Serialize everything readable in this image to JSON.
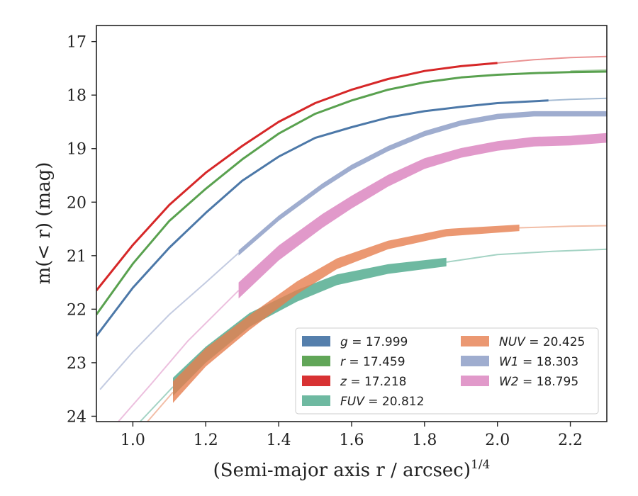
{
  "chart_data": {
    "type": "line",
    "xlabel": "(Semi-major axis r / arcsec)",
    "xlabel_sup": "1/4",
    "ylabel": "m(< r) (mag)",
    "xlim": [
      0.9,
      2.3
    ],
    "ylim": [
      24.1,
      16.7
    ],
    "y_inverted": true,
    "grid": false,
    "legend_position": "lower-right",
    "xticks": [
      1.0,
      1.2,
      1.4,
      1.6,
      1.8,
      2.0,
      2.2
    ],
    "xtick_labels": [
      "1.0",
      "1.2",
      "1.4",
      "1.6",
      "1.8",
      "2.0",
      "2.2"
    ],
    "yticks": [
      17,
      18,
      19,
      20,
      21,
      22,
      23,
      24
    ],
    "ytick_labels": [
      "17",
      "18",
      "19",
      "20",
      "21",
      "22",
      "23",
      "24"
    ],
    "series": [
      {
        "name": "g = 17.999",
        "color": "#4c78a8",
        "kind": "line",
        "x": [
          0.9,
          1.0,
          1.1,
          1.2,
          1.3,
          1.4,
          1.5,
          1.6,
          1.7,
          1.8,
          1.9,
          2.0,
          2.14
        ],
        "y": [
          22.5,
          21.6,
          20.85,
          20.2,
          19.6,
          19.15,
          18.8,
          18.6,
          18.42,
          18.3,
          18.22,
          18.15,
          18.1
        ],
        "ext_x": [
          2.14,
          2.2,
          2.3
        ],
        "ext_y": [
          18.1,
          18.08,
          18.06
        ]
      },
      {
        "name": "r = 17.459",
        "color": "#59a14f",
        "kind": "line",
        "x": [
          0.9,
          1.0,
          1.1,
          1.2,
          1.3,
          1.4,
          1.5,
          1.6,
          1.7,
          1.8,
          1.9,
          2.0,
          2.1,
          2.2,
          2.3
        ],
        "y": [
          22.1,
          21.15,
          20.35,
          19.75,
          19.2,
          18.72,
          18.35,
          18.1,
          17.9,
          17.76,
          17.67,
          17.62,
          17.59,
          17.57,
          17.56
        ],
        "ext_x": [
          2.2,
          2.3
        ],
        "ext_y": [
          17.55,
          17.53
        ]
      },
      {
        "name": "z = 17.218",
        "color": "#d62728",
        "kind": "line",
        "x": [
          0.9,
          1.0,
          1.1,
          1.2,
          1.3,
          1.4,
          1.5,
          1.6,
          1.7,
          1.8,
          1.9,
          2.0
        ],
        "y": [
          21.65,
          20.8,
          20.05,
          19.45,
          18.95,
          18.5,
          18.15,
          17.9,
          17.7,
          17.55,
          17.46,
          17.4
        ],
        "ext_x": [
          2.0,
          2.1,
          2.2,
          2.3
        ],
        "ext_y": [
          17.4,
          17.34,
          17.3,
          17.28
        ]
      },
      {
        "name": "FUV = 20.812",
        "color": "#4aa88a",
        "kind": "band",
        "x": [
          1.11,
          1.2,
          1.32,
          1.45,
          1.56,
          1.7,
          1.86
        ],
        "y": [
          23.45,
          22.85,
          22.2,
          21.75,
          21.45,
          21.25,
          21.12
        ],
        "err": [
          0.17,
          0.15,
          0.13,
          0.11,
          0.1,
          0.09,
          0.08
        ],
        "ext_x": [
          1.02,
          1.11
        ],
        "ext_y": [
          24.1,
          23.45
        ],
        "ext2_x": [
          1.86,
          2.0,
          2.15,
          2.3
        ],
        "ext2_y": [
          21.12,
          20.98,
          20.92,
          20.88
        ]
      },
      {
        "name": "NUV = 20.425",
        "color": "#e67e4f",
        "kind": "band",
        "x": [
          1.11,
          1.2,
          1.32,
          1.45,
          1.56,
          1.7,
          1.86,
          2.06
        ],
        "y": [
          23.55,
          22.9,
          22.25,
          21.6,
          21.15,
          20.8,
          20.57,
          20.48
        ],
        "err": [
          0.2,
          0.17,
          0.14,
          0.12,
          0.1,
          0.08,
          0.07,
          0.06
        ],
        "ext_x": [
          1.04,
          1.11
        ],
        "ext_y": [
          24.1,
          23.55
        ],
        "ext2_x": [
          2.06,
          2.2,
          2.3
        ],
        "ext2_y": [
          20.48,
          20.45,
          20.44
        ]
      },
      {
        "name": "W1 = 18.303",
        "color": "#8798c3",
        "kind": "band",
        "x": [
          1.29,
          1.4,
          1.52,
          1.6,
          1.7,
          1.8,
          1.9,
          2.0,
          2.1,
          2.2,
          2.3
        ],
        "y": [
          20.95,
          20.3,
          19.7,
          19.35,
          19.0,
          18.72,
          18.52,
          18.4,
          18.35,
          18.35,
          18.35
        ],
        "err": [
          0.05,
          0.05,
          0.05,
          0.05,
          0.05,
          0.05,
          0.05,
          0.05,
          0.05,
          0.05,
          0.05
        ],
        "ext_x": [
          0.91,
          1.0,
          1.1,
          1.2,
          1.29
        ],
        "ext_y": [
          23.5,
          22.8,
          22.1,
          21.5,
          20.95
        ]
      },
      {
        "name": "W2 = 18.795",
        "color": "#d97fbd",
        "kind": "band",
        "x": [
          1.29,
          1.4,
          1.52,
          1.6,
          1.7,
          1.8,
          1.9,
          2.0,
          2.1,
          2.2,
          2.3
        ],
        "y": [
          21.65,
          20.95,
          20.35,
          20.0,
          19.6,
          19.28,
          19.08,
          18.95,
          18.87,
          18.85,
          18.8
        ],
        "err": [
          0.15,
          0.14,
          0.13,
          0.12,
          0.11,
          0.1,
          0.09,
          0.09,
          0.09,
          0.09,
          0.09
        ],
        "ext_x": [
          0.96,
          1.05,
          1.15,
          1.29
        ],
        "ext_y": [
          24.1,
          23.4,
          22.6,
          21.65
        ]
      }
    ]
  }
}
